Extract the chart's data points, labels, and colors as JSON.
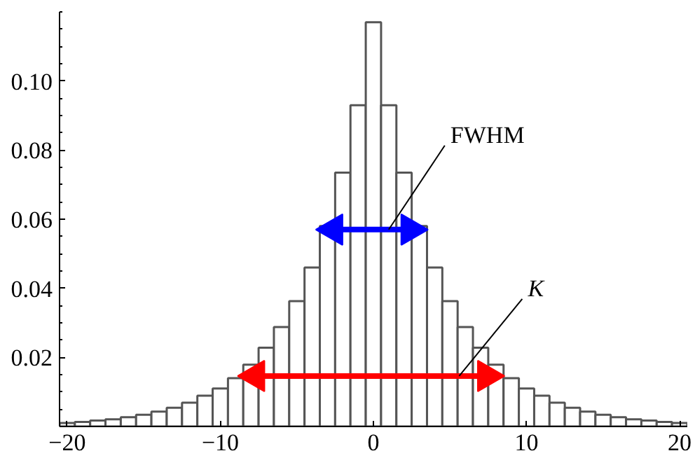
{
  "chart_data": {
    "type": "histogram",
    "bins": [
      -20.5,
      -19.5,
      -18.5,
      -17.5,
      -16.5,
      -15.5,
      -14.5,
      -13.5,
      -12.5,
      -11.5,
      -10.5,
      -9.5,
      -8.5,
      -7.5,
      -6.5,
      -5.5,
      -4.5,
      -3.5,
      -2.5,
      -1.5,
      -0.5,
      0.5,
      1.5,
      2.5,
      3.5,
      4.5,
      5.5,
      6.5,
      7.5,
      8.5,
      9.5,
      10.5,
      11.5,
      12.5,
      13.5,
      14.5,
      15.5,
      16.5,
      17.5,
      18.5,
      19.5,
      20.5
    ],
    "values": [
      0.001,
      0.0013,
      0.0017,
      0.0021,
      0.0027,
      0.0034,
      0.0043,
      0.0054,
      0.0069,
      0.0089,
      0.011,
      0.014,
      0.0179,
      0.0228,
      0.0288,
      0.0363,
      0.046,
      0.058,
      0.0735,
      0.093,
      0.117,
      0.093,
      0.0735,
      0.058,
      0.046,
      0.0363,
      0.0288,
      0.0228,
      0.0179,
      0.014,
      0.011,
      0.0089,
      0.0069,
      0.0054,
      0.0043,
      0.0034,
      0.0027,
      0.0021,
      0.0017,
      0.0013,
      0.001
    ],
    "color": "#ffffff",
    "series": [
      {
        "type": "line",
        "color": "#0000ff",
        "marker": "triangle",
        "x": [
          -2.6,
          2.4
        ],
        "values": [
          0.057,
          0.057
        ]
      },
      {
        "type": "line",
        "color": "#ff0000",
        "marker": "triangle",
        "x": [
          -7.7,
          7.4
        ],
        "values": [
          0.0146,
          0.0146
        ]
      }
    ],
    "annotations": [
      {
        "text": "FWHM",
        "x": 1.0,
        "y": 0.057
      },
      {
        "text": "K",
        "x": 5.6,
        "y": 0.0146
      }
    ],
    "xlim": [
      -20.5,
      20.5
    ],
    "ylim": [
      0,
      0.12
    ],
    "xticks": [
      -20,
      -10,
      0,
      10,
      20
    ],
    "yticks": [
      {
        "value": 0,
        "label": null
      },
      0.02,
      0.04,
      0.06,
      0.08,
      {
        "value": 0.1,
        "label": "0.10"
      }
    ],
    "grid": false
  }
}
